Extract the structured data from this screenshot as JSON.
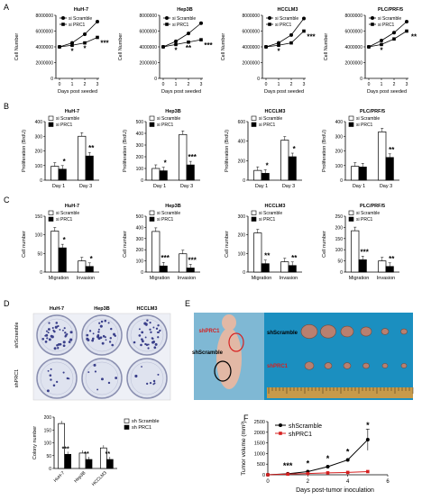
{
  "panel_letters": {
    "A": "A",
    "B": "B",
    "C": "C",
    "D": "D",
    "E": "E",
    "F": "F"
  },
  "cell_lines": [
    "HuH-7",
    "Hep3B",
    "HCCLM3",
    "PLC/PRF/5"
  ],
  "legend_si": [
    "si Scramble",
    "si PRC1"
  ],
  "legend_sh": [
    "sh Scramble",
    "sh PRC1"
  ],
  "legend_shF": [
    "shScramble",
    "shPRC1"
  ],
  "colors": {
    "scramble_line": "#000000",
    "prc1_line": "#333333",
    "sh_red": "#d62020",
    "bar_black": "#000000",
    "bar_white": "#ffffff",
    "dish_ring": "#8a8fb0",
    "dish_fill": "#dfe3ef",
    "colony": "#3a3f8a",
    "e_bg": "#1b8fc0",
    "tumor": "#b88070",
    "tumor_dark": "#7a4a3a",
    "mouse": "#e2b8a5",
    "ruler": "#c79a4a"
  },
  "panel_a": {
    "ylabel": "Cell Number",
    "xlabel": "Days post seeded",
    "ytick_labels": [
      "0",
      "2000000",
      "4000000",
      "6000000",
      "8000000"
    ],
    "xtick_labels": [
      "0",
      "1",
      "2",
      "3"
    ],
    "chart_data": [
      {
        "type": "line",
        "title": "HuH-7",
        "x": [
          0,
          1,
          2,
          3
        ],
        "ylim": [
          0,
          8000000
        ],
        "series": [
          {
            "name": "si Scramble",
            "values": [
              4000000,
              4500000,
              5600000,
              7200000
            ]
          },
          {
            "name": "si PRC1",
            "values": [
              4000000,
              4200000,
              4500000,
              5200000
            ]
          }
        ],
        "annotations": [
          "*",
          "*",
          "***"
        ]
      },
      {
        "type": "line",
        "title": "Hep3B",
        "x": [
          0,
          1,
          2,
          3
        ],
        "ylim": [
          0,
          8000000
        ],
        "series": [
          {
            "name": "si Scramble",
            "values": [
              4000000,
              4700000,
              5700000,
              7000000
            ]
          },
          {
            "name": "si PRC1",
            "values": [
              4000000,
              4300000,
              4600000,
              4900000
            ]
          }
        ],
        "annotations": [
          "*",
          "**",
          "***"
        ]
      },
      {
        "type": "line",
        "title": "HCCLM3",
        "x": [
          0,
          1,
          2,
          3
        ],
        "ylim": [
          0,
          8000000
        ],
        "series": [
          {
            "name": "si Scramble",
            "values": [
              4000000,
              4500000,
              5500000,
              7600000
            ]
          },
          {
            "name": "si PRC1",
            "values": [
              4000000,
              4200000,
              4500000,
              6000000
            ]
          }
        ],
        "annotations": [
          "*",
          "***"
        ]
      },
      {
        "type": "line",
        "title": "PLC/PRF/5",
        "x": [
          0,
          1,
          2,
          3
        ],
        "ylim": [
          0,
          8000000
        ],
        "series": [
          {
            "name": "si Scramble",
            "values": [
              4000000,
              4800000,
              5800000,
              7200000
            ]
          },
          {
            "name": "si PRC1",
            "values": [
              4000000,
              4300000,
              5000000,
              6000000
            ]
          }
        ],
        "annotations": [
          "*",
          "**"
        ]
      }
    ]
  },
  "panel_b": {
    "ylabel": "Proliferation (BrdU)",
    "categories": [
      "Day 1",
      "Day 3"
    ],
    "chart_data": [
      {
        "type": "bar",
        "title": "HuH-7",
        "ylim": [
          0,
          400
        ],
        "ytick_labels": [
          "0",
          "100",
          "200",
          "300",
          "400"
        ],
        "series": [
          {
            "name": "si Scramble",
            "values": [
              95,
              300
            ]
          },
          {
            "name": "si PRC1",
            "values": [
              75,
              165
            ]
          }
        ],
        "annotations": [
          "*",
          "**"
        ]
      },
      {
        "type": "bar",
        "title": "Hep3B",
        "ylim": [
          0,
          500
        ],
        "ytick_labels": [
          "0",
          "100",
          "200",
          "300",
          "400",
          "500"
        ],
        "series": [
          {
            "name": "si Scramble",
            "values": [
              100,
              390
            ]
          },
          {
            "name": "si PRC1",
            "values": [
              80,
              130
            ]
          }
        ],
        "annotations": [
          "*",
          "***"
        ]
      },
      {
        "type": "bar",
        "title": "HCCLM3",
        "ylim": [
          0,
          600
        ],
        "ytick_labels": [
          "0",
          "200",
          "400",
          "600"
        ],
        "series": [
          {
            "name": "si Scramble",
            "values": [
              100,
              410
            ]
          },
          {
            "name": "si PRC1",
            "values": [
              70,
              240
            ]
          }
        ],
        "annotations": [
          "*",
          "*"
        ]
      },
      {
        "type": "bar",
        "title": "PLC/PRF/5",
        "ylim": [
          0,
          400
        ],
        "ytick_labels": [
          "0",
          "100",
          "200",
          "300",
          "400"
        ],
        "series": [
          {
            "name": "si Scramble",
            "values": [
              95,
              330
            ]
          },
          {
            "name": "si PRC1",
            "values": [
              90,
              155
            ]
          }
        ],
        "annotations": [
          "**"
        ]
      }
    ]
  },
  "panel_c": {
    "ylabel": "Cell number",
    "categories": [
      "Migration",
      "Invasion"
    ],
    "chart_data": [
      {
        "type": "bar",
        "title": "HuH-7",
        "ylim": [
          0,
          150
        ],
        "ytick_labels": [
          "0",
          "50",
          "100",
          "150"
        ],
        "series": [
          {
            "name": "si Scramble",
            "values": [
              110,
              30
            ]
          },
          {
            "name": "si PRC1",
            "values": [
              65,
              15
            ]
          }
        ],
        "annotations": [
          "*",
          "*"
        ]
      },
      {
        "type": "bar",
        "title": "Hep3B",
        "ylim": [
          0,
          550
        ],
        "ytick_labels": [
          "0",
          "100",
          "200",
          "300",
          "400",
          "500"
        ],
        "series": [
          {
            "name": "si Scramble",
            "values": [
              400,
              180
            ]
          },
          {
            "name": "si PRC1",
            "values": [
              60,
              40
            ]
          }
        ],
        "annotations": [
          "***",
          "***"
        ]
      },
      {
        "type": "bar",
        "title": "HCCLM3",
        "ylim": [
          0,
          300
        ],
        "ytick_labels": [
          "0",
          "100",
          "200",
          "300"
        ],
        "series": [
          {
            "name": "si Scramble",
            "values": [
              210,
              55
            ]
          },
          {
            "name": "si PRC1",
            "values": [
              45,
              35
            ]
          }
        ],
        "annotations": [
          "**",
          "**"
        ]
      },
      {
        "type": "bar",
        "title": "PLC/PRF/5",
        "ylim": [
          0,
          250
        ],
        "ytick_labels": [
          "0",
          "50",
          "100",
          "150",
          "200",
          "250"
        ],
        "series": [
          {
            "name": "si Scramble",
            "values": [
              185,
              50
            ]
          },
          {
            "name": "si PRC1",
            "values": [
              55,
              25
            ]
          }
        ],
        "annotations": [
          "***",
          "**"
        ]
      }
    ]
  },
  "panel_d": {
    "column_labels": [
      "HuH-7",
      "Hep3B",
      "HCCLM3"
    ],
    "row_labels": [
      "shScramble",
      "shPRC1"
    ],
    "colony_counts": [
      [
        38,
        30,
        32
      ],
      [
        10,
        7,
        8
      ]
    ],
    "chart_data": {
      "type": "bar",
      "ylabel": "Colony number",
      "categories": [
        "HuH-7",
        "Hep3B",
        "HCCLM3"
      ],
      "ylim": [
        0,
        200
      ],
      "ytick_labels": [
        "0",
        "50",
        "100",
        "150",
        "200"
      ],
      "series": [
        {
          "name": "sh Scramble",
          "values": [
            175,
            60,
            80
          ]
        },
        {
          "name": "sh PRC1",
          "values": [
            55,
            35,
            35
          ]
        }
      ],
      "annotations": [
        "***",
        "**",
        "**"
      ]
    }
  },
  "panel_e": {
    "label_top": "shPRC1",
    "label_mid": "shScramble",
    "row_label_top": "shScramble",
    "row_label_bottom": "shPRC1",
    "tumors_per_row": 6
  },
  "panel_f": {
    "ylabel": "Tumor volume (mm³)",
    "xlabel": "Days post-tumor inoculation",
    "xtick_labels": [
      "0",
      "2",
      "4",
      "6"
    ],
    "ytick_labels": [
      "0",
      "500",
      "1000",
      "1500",
      "2000",
      "2500"
    ],
    "chart_data": {
      "type": "line",
      "x": [
        0,
        1,
        2,
        3,
        4,
        5
      ],
      "xlim": [
        0,
        6
      ],
      "ylim": [
        0,
        2500
      ],
      "series": [
        {
          "name": "shScramble",
          "values": [
            0,
            50,
            150,
            380,
            700,
            1650
          ]
        },
        {
          "name": "shPRC1",
          "values": [
            0,
            30,
            60,
            90,
            110,
            150
          ]
        }
      ],
      "annotations": [
        "***",
        "*",
        "*",
        "*",
        "*"
      ]
    }
  }
}
